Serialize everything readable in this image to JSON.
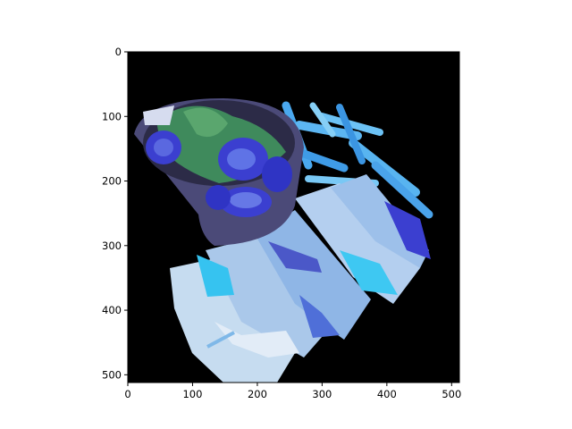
{
  "chart_data": {
    "type": "image",
    "title": "",
    "xlabel": "",
    "ylabel": "",
    "x_ticks": [
      0,
      100,
      200,
      300,
      400,
      500
    ],
    "y_ticks": [
      0,
      100,
      200,
      300,
      400,
      500
    ],
    "xlim": [
      0,
      512
    ],
    "ylim": [
      512,
      0
    ],
    "grid": false,
    "image_content": "false-color photo of sandwiches, fries and a bowl of salad with tomatoes on a black background"
  },
  "colors": {
    "background": "#ffffff",
    "axes_frame": "#000000",
    "image_bg": "#000000",
    "sandwich_light": "#bcd6ee",
    "fries": "#4aa8ee",
    "tomato": "#3b3fd0",
    "bowl": "#4b4a78",
    "salad": "#3f8a5c",
    "accent_cyan": "#36c3f0"
  }
}
